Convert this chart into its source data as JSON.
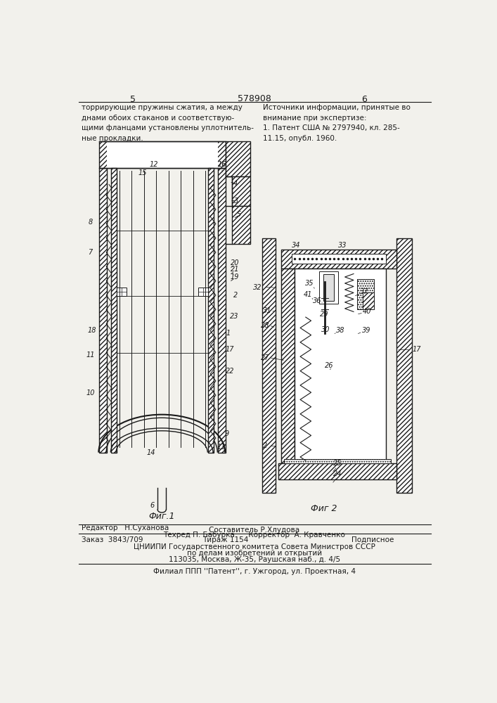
{
  "page_color": "#f2f1ec",
  "line_color": "#1a1a1a",
  "title_text": "578908",
  "page_left": "5",
  "page_right": "6",
  "fig1_caption": "Фиг.1",
  "fig2_caption": "Фиг 2",
  "top_left_text": "торрирующие пружины сжатия, а между\nднами обоих стаканов и соответствую-\nщими фланцами установлены уплотнитель-\nные прокладки.",
  "top_right_text": "Источники информации, принятые во\nвнимание при экспертизе:\n1. Патент США № 2797940, кл. 285-\n11.15, опубл. 1960.",
  "bottom_editor": "Редактор   Н.Суханова",
  "bottom_sostavitel": "Составитель Р.Хлудова",
  "bottom_tehred": "Техред П. Бабурка      Корректор  А. Кравченко",
  "bottom_order": "Заказ  3843/709",
  "bottom_tirazh": "Тираж 1154",
  "bottom_podpisnoe": "Подписное",
  "bottom_org": "ЦНИИПИ Государственного комитета Совета Министров СССР",
  "bottom_org2": "по делам изобретений и открытий",
  "bottom_addr": "113035, Москва, Ж-35, Раушская наб., д. 4/5",
  "bottom_filial": "Филиал ППП ''Патент'', г. Ужгород, ул. Проектная, 4"
}
